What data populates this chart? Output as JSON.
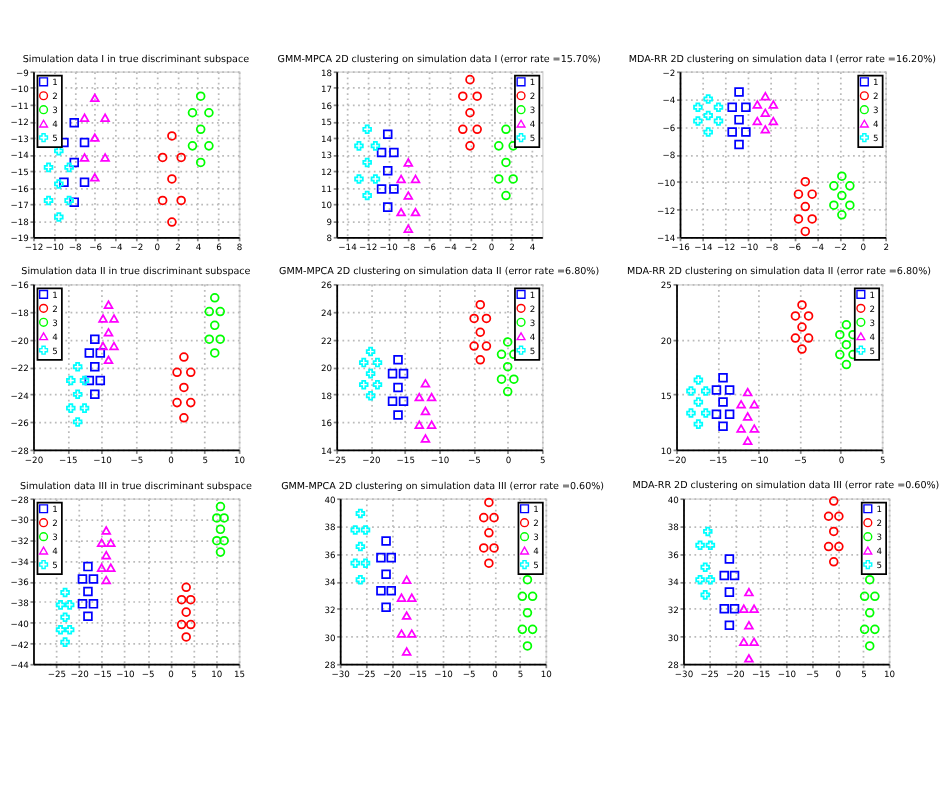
{
  "chart_data": [
    {
      "type": "scatter",
      "title": "Simulation data I in true discriminant subspace",
      "xlim": [
        -12,
        8
      ],
      "xticks": [
        -12,
        -10,
        -8,
        -6,
        -4,
        -2,
        0,
        2,
        4,
        6,
        8
      ],
      "ylim": [
        -19,
        -9
      ],
      "yticks": [
        -19,
        -18,
        -17,
        -16,
        -15,
        -14,
        -13,
        -12,
        -11,
        -10,
        -9
      ],
      "grid": true,
      "legend": "top left",
      "series": [
        {
          "name": "1",
          "color": "#0000ff",
          "marker": "square",
          "x": [
            -8,
            -9,
            -7,
            -9,
            -7,
            -8,
            -8
          ],
          "values": [
            -14.5,
            -15.7,
            -13.3,
            -13.3,
            -15.7,
            -12.1,
            -16.9
          ]
        },
        {
          "name": "2",
          "color": "#ff0000",
          "marker": "circle",
          "x": [
            1.5,
            0.6,
            2.4,
            0.6,
            2.4,
            1.5,
            1.5
          ],
          "values": [
            -15.5,
            -16.8,
            -14.2,
            -14.2,
            -16.8,
            -12.9,
            -18.1
          ]
        },
        {
          "name": "3",
          "color": "#00ff00",
          "marker": "point",
          "x": [
            4.3,
            3.5,
            5.1,
            3.5,
            5.1,
            4.3,
            4.3
          ],
          "values": [
            -12.5,
            -13.5,
            -11.5,
            -11.5,
            -13.5,
            -10.5,
            -14.5
          ]
        },
        {
          "name": "4",
          "color": "#ff00ff",
          "marker": "triangle",
          "x": [
            -6,
            -7,
            -5,
            -7,
            -5,
            -6,
            -6
          ],
          "values": [
            -13,
            -14.2,
            -11.8,
            -11.8,
            -14.2,
            -10.6,
            -15.4
          ]
        },
        {
          "name": "5",
          "color": "#00ffff",
          "marker": "cross",
          "x": [
            -9.5,
            -10.5,
            -8.5,
            -10.5,
            -8.5,
            -9.5,
            -9.5
          ],
          "values": [
            -15.8,
            -16.8,
            -14.8,
            -14.8,
            -16.8,
            -13.8,
            -17.8
          ]
        }
      ]
    },
    {
      "type": "scatter",
      "title": "GMM-MPCA 2D clustering on simulation data I (error rate =15.70%)",
      "xlim": [
        -15,
        5
      ],
      "xticks": [
        -14,
        -12,
        -10,
        -8,
        -6,
        -4,
        -2,
        0,
        2,
        4
      ],
      "ylim": [
        8,
        18
      ],
      "yticks": [
        8,
        9,
        10,
        11,
        12,
        13,
        14,
        15,
        16,
        17,
        18
      ],
      "grid": true,
      "legend": "top right",
      "series": [
        {
          "name": "1",
          "color": "#0000ff",
          "marker": "square",
          "x": [
            -10,
            -10.6,
            -9.4,
            -10.6,
            -9.4,
            -10,
            -10
          ],
          "values": [
            12,
            10.9,
            13.1,
            13.1,
            10.9,
            14.2,
            9.8
          ]
        },
        {
          "name": "2",
          "color": "#ff0000",
          "marker": "circle",
          "x": [
            -2,
            -2.7,
            -1.3,
            -2.7,
            -1.3,
            -2,
            -2
          ],
          "values": [
            15.5,
            14.5,
            16.5,
            16.5,
            14.5,
            17.5,
            13.5
          ]
        },
        {
          "name": "3",
          "color": "#00ff00",
          "marker": "point",
          "x": [
            1.5,
            0.8,
            2.2,
            0.8,
            2.2,
            1.5,
            1.5
          ],
          "values": [
            12.5,
            11.5,
            13.5,
            13.5,
            11.5,
            14.5,
            10.5
          ]
        },
        {
          "name": "4",
          "color": "#ff00ff",
          "marker": "triangle",
          "x": [
            -8,
            -8.7,
            -7.3,
            -8.7,
            -7.3,
            -8,
            -8
          ],
          "values": [
            10.5,
            9.5,
            11.5,
            11.5,
            9.5,
            12.5,
            8.5
          ]
        },
        {
          "name": "5",
          "color": "#00ffff",
          "marker": "cross",
          "x": [
            -12,
            -12.8,
            -11.2,
            -12.8,
            -11.2,
            -12,
            -12
          ],
          "values": [
            12.5,
            11.5,
            13.5,
            13.5,
            11.5,
            14.5,
            10.5
          ]
        }
      ]
    },
    {
      "type": "scatter",
      "title": "MDA-RR 2D clustering on simulation data I (error rate =16.20%)",
      "xlim": [
        -16,
        2
      ],
      "xticks": [
        -16,
        -14,
        -12,
        -10,
        -8,
        -6,
        -4,
        -2,
        0,
        2
      ],
      "ylim": [
        -14,
        -2
      ],
      "yticks": [
        -14,
        -12,
        -10,
        -8,
        -6,
        -4,
        -2
      ],
      "grid": true,
      "legend": "top right",
      "series": [
        {
          "name": "1",
          "color": "#0000ff",
          "marker": "square",
          "x": [
            -10.8,
            -11.4,
            -10.2,
            -11.4,
            -10.2,
            -10.8,
            -10.8
          ],
          "values": [
            -5.5,
            -6.4,
            -4.6,
            -4.6,
            -6.4,
            -3.5,
            -7.3
          ]
        },
        {
          "name": "2",
          "color": "#ff0000",
          "marker": "circle",
          "x": [
            -5,
            -5.6,
            -4.4,
            -5.6,
            -4.4,
            -5,
            -5
          ],
          "values": [
            -11.8,
            -12.7,
            -10.9,
            -10.9,
            -12.7,
            -10,
            -13.6
          ]
        },
        {
          "name": "3",
          "color": "#00ff00",
          "marker": "point",
          "x": [
            -1.8,
            -2.5,
            -1.1,
            -2.5,
            -1.1,
            -1.8,
            -1.8
          ],
          "values": [
            -11,
            -11.7,
            -10.3,
            -10.3,
            -11.7,
            -9.6,
            -12.4
          ]
        },
        {
          "name": "4",
          "color": "#ff00ff",
          "marker": "triangle",
          "x": [
            -8.5,
            -9.2,
            -7.8,
            -9.2,
            -7.8,
            -8.5,
            -8.5
          ],
          "values": [
            -5,
            -5.6,
            -4.4,
            -4.4,
            -5.6,
            -3.8,
            -6.2
          ]
        },
        {
          "name": "5",
          "color": "#00ffff",
          "marker": "cross",
          "x": [
            -13.5,
            -14.4,
            -12.6,
            -14.4,
            -12.6,
            -13.5,
            -13.5
          ],
          "values": [
            -5.2,
            -5.6,
            -4.6,
            -4.6,
            -5.6,
            -4,
            -6.4
          ]
        }
      ]
    },
    {
      "type": "scatter",
      "title": "Simulation data II in true discriminant subspace",
      "xlim": [
        -20,
        10
      ],
      "xticks": [
        -20,
        -15,
        -10,
        -5,
        0,
        5,
        10
      ],
      "ylim": [
        -28,
        -16
      ],
      "yticks": [
        -28,
        -26,
        -24,
        -22,
        -20,
        -18,
        -16
      ],
      "grid": true,
      "legend": "top left",
      "series": [
        {
          "name": "1",
          "color": "#0000ff",
          "marker": "square",
          "x": [
            -11,
            -11.8,
            -10.2,
            -11.8,
            -10.2,
            -11,
            -11
          ],
          "values": [
            -22,
            -23,
            -21,
            -21,
            -23,
            -20,
            -24
          ]
        },
        {
          "name": "2",
          "color": "#ff0000",
          "marker": "circle",
          "x": [
            2,
            1,
            3,
            1,
            3,
            2,
            2
          ],
          "values": [
            -23.5,
            -24.6,
            -22.4,
            -22.4,
            -24.6,
            -21.3,
            -25.7
          ]
        },
        {
          "name": "3",
          "color": "#00ff00",
          "marker": "point",
          "x": [
            6.5,
            5.7,
            7.3,
            5.7,
            7.3,
            6.5,
            6.5
          ],
          "values": [
            -19,
            -20,
            -18,
            -18,
            -20,
            -17,
            -21
          ]
        },
        {
          "name": "4",
          "color": "#ff00ff",
          "marker": "triangle",
          "x": [
            -9,
            -9.8,
            -8.2,
            -9.8,
            -8.2,
            -9,
            -9
          ],
          "values": [
            -19.5,
            -20.5,
            -18.5,
            -18.5,
            -20.5,
            -17.5,
            -21.5
          ]
        },
        {
          "name": "5",
          "color": "#00ffff",
          "marker": "cross",
          "x": [
            -13.5,
            -14.5,
            -12.5,
            -14.5,
            -12.5,
            -13.5,
            -13.5
          ],
          "values": [
            -24,
            -25,
            -23,
            -23,
            -25,
            -22,
            -26
          ]
        }
      ]
    },
    {
      "type": "scatter",
      "title": "GMM-MPCA 2D clustering on simulation data II (error rate =6.80%)",
      "xlim": [
        -25,
        5
      ],
      "xticks": [
        -25,
        -20,
        -15,
        -10,
        -5,
        0,
        5
      ],
      "ylim": [
        14,
        26
      ],
      "yticks": [
        14,
        16,
        18,
        20,
        22,
        24,
        26
      ],
      "grid": true,
      "legend": "top right",
      "series": [
        {
          "name": "1",
          "color": "#0000ff",
          "marker": "square",
          "x": [
            -16,
            -16.8,
            -15.2,
            -16.8,
            -15.2,
            -16,
            -16
          ],
          "values": [
            18.5,
            17.5,
            19.5,
            19.5,
            17.5,
            20.5,
            16.5
          ]
        },
        {
          "name": "2",
          "color": "#ff0000",
          "marker": "circle",
          "x": [
            -4,
            -4.9,
            -3.1,
            -4.9,
            -3.1,
            -4,
            -4
          ],
          "values": [
            22.5,
            21.5,
            23.5,
            23.5,
            21.5,
            24.5,
            20.5
          ]
        },
        {
          "name": "3",
          "color": "#00ff00",
          "marker": "point",
          "x": [
            0,
            -0.9,
            0.9,
            -0.9,
            0.9,
            0,
            0
          ],
          "values": [
            20,
            19.1,
            20.9,
            20.9,
            19.1,
            21.8,
            18.2
          ]
        },
        {
          "name": "4",
          "color": "#ff00ff",
          "marker": "triangle",
          "x": [
            -12,
            -12.9,
            -11.1,
            -12.9,
            -11.1,
            -12,
            -12
          ],
          "values": [
            16.8,
            15.8,
            17.8,
            17.8,
            15.8,
            18.8,
            14.8
          ]
        },
        {
          "name": "5",
          "color": "#00ffff",
          "marker": "cross",
          "x": [
            -20,
            -21,
            -19,
            -21,
            -19,
            -20,
            -20
          ],
          "values": [
            19.5,
            18.7,
            20.3,
            20.3,
            18.7,
            21.1,
            17.9
          ]
        }
      ]
    },
    {
      "type": "scatter",
      "title": "MDA-RR 2D clustering on simulation data II (error rate =6.80%)",
      "xlim": [
        -20,
        5
      ],
      "xticks": [
        -20,
        -15,
        -10,
        -5,
        0,
        5
      ],
      "ylim": [
        10,
        25
      ],
      "yticks": [
        10,
        15,
        20,
        25
      ],
      "grid": true,
      "legend": "top right",
      "series": [
        {
          "name": "1",
          "color": "#0000ff",
          "marker": "square",
          "x": [
            -14.3,
            -15.1,
            -13.5,
            -15.1,
            -13.5,
            -14.3,
            -14.3
          ],
          "values": [
            14.3,
            13.2,
            15.4,
            15.4,
            13.2,
            16.5,
            12.1
          ]
        },
        {
          "name": "2",
          "color": "#ff0000",
          "marker": "circle",
          "x": [
            -4.7,
            -5.5,
            -3.9,
            -5.5,
            -3.9,
            -4.7,
            -4.7
          ],
          "values": [
            21.1,
            20.1,
            22.1,
            22.1,
            20.1,
            23.1,
            19.1
          ]
        },
        {
          "name": "3",
          "color": "#00ff00",
          "marker": "point",
          "x": [
            0.7,
            -0.1,
            1.5,
            -0.1,
            1.5,
            0.7,
            0.7
          ],
          "values": [
            19.5,
            18.6,
            20.4,
            20.4,
            18.6,
            21.3,
            17.7
          ]
        },
        {
          "name": "4",
          "color": "#ff00ff",
          "marker": "triangle",
          "x": [
            -11.3,
            -12.1,
            -10.5,
            -12.1,
            -10.5,
            -11.3,
            -11.3
          ],
          "values": [
            13,
            11.9,
            14.1,
            14.1,
            11.9,
            15.2,
            10.8
          ]
        },
        {
          "name": "5",
          "color": "#00ffff",
          "marker": "cross",
          "x": [
            -17.3,
            -18.2,
            -16.4,
            -18.2,
            -16.4,
            -17.3,
            -17.3
          ],
          "values": [
            14.3,
            13.3,
            15.3,
            15.3,
            13.3,
            16.3,
            12.3
          ]
        }
      ]
    },
    {
      "type": "scatter",
      "title": "Simulation data III in true discriminant subspace",
      "xlim": [
        -30,
        15
      ],
      "xticks": [
        -25,
        -20,
        -15,
        -10,
        -5,
        0,
        5,
        10,
        15
      ],
      "ylim": [
        -44,
        -28
      ],
      "yticks": [
        -44,
        -42,
        -40,
        -38,
        -36,
        -34,
        -32,
        -30,
        -28
      ],
      "grid": true,
      "legend": "top left",
      "series": [
        {
          "name": "1",
          "color": "#0000ff",
          "marker": "square",
          "x": [
            -18,
            -19.2,
            -16.8,
            -19.2,
            -16.8,
            -18,
            -18
          ],
          "values": [
            -37,
            -38.2,
            -35.8,
            -35.8,
            -38.2,
            -34.6,
            -39.4
          ]
        },
        {
          "name": "2",
          "color": "#ff0000",
          "marker": "circle",
          "x": [
            3.5,
            2.5,
            4.5,
            2.5,
            4.5,
            3.5,
            3.5
          ],
          "values": [
            -39,
            -40.2,
            -37.8,
            -37.8,
            -40.2,
            -36.6,
            -41.4
          ]
        },
        {
          "name": "3",
          "color": "#00ff00",
          "marker": "point",
          "x": [
            11,
            10.2,
            11.8,
            10.2,
            11.8,
            11,
            11
          ],
          "values": [
            -31,
            -32.1,
            -29.9,
            -29.9,
            -32.1,
            -28.8,
            -33.2
          ]
        },
        {
          "name": "4",
          "color": "#ff00ff",
          "marker": "triangle",
          "x": [
            -14,
            -15,
            -13,
            -15,
            -13,
            -14,
            -14
          ],
          "values": [
            -33.5,
            -34.7,
            -32.3,
            -32.3,
            -34.7,
            -31.1,
            -35.9
          ]
        },
        {
          "name": "5",
          "color": "#00ffff",
          "marker": "cross",
          "x": [
            -23,
            -24,
            -22,
            -24,
            -22,
            -23,
            -23
          ],
          "values": [
            -39.5,
            -40.7,
            -38.3,
            -38.3,
            -40.7,
            -37.1,
            -41.9
          ]
        }
      ]
    },
    {
      "type": "scatter",
      "title": "GMM-MPCA 2D clustering on simulation data III (error rate =0.60%)",
      "xlim": [
        -30,
        10
      ],
      "xticks": [
        -30,
        -25,
        -20,
        -15,
        -10,
        -5,
        0,
        5,
        10
      ],
      "ylim": [
        28,
        40
      ],
      "yticks": [
        28,
        30,
        32,
        34,
        36,
        38,
        40
      ],
      "grid": true,
      "legend": "top right",
      "series": [
        {
          "name": "1",
          "color": "#0000ff",
          "marker": "square",
          "x": [
            -21,
            -22,
            -20,
            -22,
            -20,
            -21,
            -21
          ],
          "values": [
            34.5,
            33.3,
            35.7,
            35.7,
            33.3,
            36.9,
            32.1
          ]
        },
        {
          "name": "2",
          "color": "#ff0000",
          "marker": "circle",
          "x": [
            -1,
            -2,
            0,
            -2,
            0,
            -1,
            -1
          ],
          "values": [
            37.5,
            36.4,
            38.6,
            38.6,
            36.4,
            39.7,
            35.3
          ]
        },
        {
          "name": "3",
          "color": "#00ff00",
          "marker": "point",
          "x": [
            6.5,
            5.5,
            7.5,
            5.5,
            7.5,
            6.5,
            6.5
          ],
          "values": [
            31.7,
            30.5,
            32.9,
            32.9,
            30.5,
            34.1,
            29.3
          ]
        },
        {
          "name": "4",
          "color": "#ff00ff",
          "marker": "triangle",
          "x": [
            -17,
            -18,
            -16,
            -18,
            -16,
            -17,
            -17
          ],
          "values": [
            31.5,
            30.2,
            32.8,
            32.8,
            30.2,
            34.1,
            28.9
          ]
        },
        {
          "name": "5",
          "color": "#00ffff",
          "marker": "cross",
          "x": [
            -26,
            -27,
            -25,
            -27,
            -25,
            -26,
            -26
          ],
          "values": [
            36.5,
            35.3,
            37.7,
            37.7,
            35.3,
            38.9,
            34.1
          ]
        }
      ]
    },
    {
      "type": "scatter",
      "title": "MDA-RR 2D clustering on simulation data III (error rate =0.60%)",
      "xlim": [
        -30,
        10
      ],
      "xticks": [
        -30,
        -25,
        -20,
        -15,
        -10,
        -5,
        0,
        5,
        10
      ],
      "ylim": [
        28,
        40
      ],
      "yticks": [
        28,
        30,
        32,
        34,
        36,
        38,
        40
      ],
      "grid": true,
      "legend": "top right",
      "series": [
        {
          "name": "1",
          "color": "#0000ff",
          "marker": "square",
          "x": [
            -21,
            -22,
            -20,
            -22,
            -20,
            -21,
            -21
          ],
          "values": [
            33.2,
            32,
            34.4,
            34.4,
            32,
            35.6,
            30.8
          ]
        },
        {
          "name": "2",
          "color": "#ff0000",
          "marker": "circle",
          "x": [
            -0.7,
            -1.7,
            0.3,
            -1.7,
            0.3,
            -0.7,
            -0.7
          ],
          "values": [
            37.6,
            36.5,
            38.7,
            38.7,
            36.5,
            39.8,
            35.4
          ]
        },
        {
          "name": "3",
          "color": "#00ff00",
          "marker": "point",
          "x": [
            6.3,
            5.3,
            7.3,
            5.3,
            7.3,
            6.3,
            6.3
          ],
          "values": [
            31.7,
            30.5,
            32.9,
            32.9,
            30.5,
            34.1,
            29.3
          ]
        },
        {
          "name": "4",
          "color": "#ff00ff",
          "marker": "triangle",
          "x": [
            -17.2,
            -18.2,
            -16.2,
            -18.2,
            -16.2,
            -17.2,
            -17.2
          ],
          "values": [
            30.8,
            29.6,
            32,
            32,
            29.6,
            33.2,
            28.4
          ]
        },
        {
          "name": "5",
          "color": "#00ffff",
          "marker": "cross",
          "x": [
            -25.7,
            -26.7,
            -24.7,
            -26.7,
            -24.7,
            -25.2,
            -25.7
          ],
          "values": [
            35,
            34.1,
            36.6,
            36.6,
            34.1,
            37.6,
            33
          ]
        }
      ]
    }
  ]
}
